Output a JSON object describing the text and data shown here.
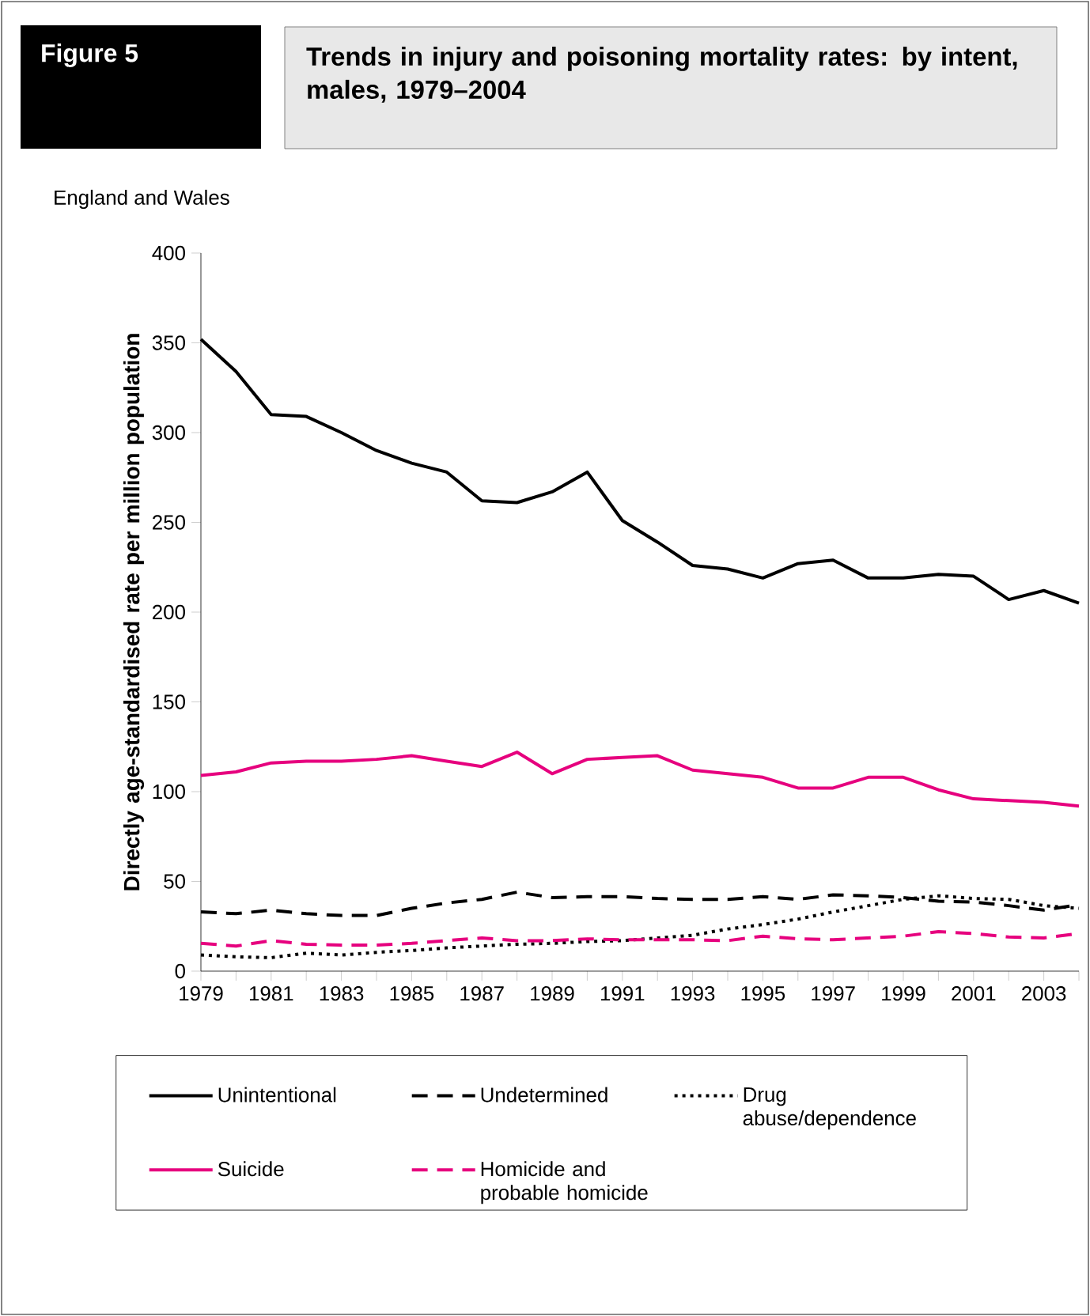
{
  "chart_data": {
    "type": "line",
    "title": "Trends in injury and poisoning mortality rates: by intent, males, 1979–2004",
    "subtitle": "England and Wales",
    "annotations": [
      "Figure 5"
    ],
    "ylabel": "Directly age-standardised rate per million population",
    "x": [
      1979,
      1980,
      1981,
      1982,
      1983,
      1984,
      1985,
      1986,
      1987,
      1988,
      1989,
      1990,
      1991,
      1992,
      1993,
      1994,
      1995,
      1996,
      1997,
      1998,
      1999,
      2000,
      2001,
      2002,
      2003,
      2004
    ],
    "xlim": [
      1979,
      2004
    ],
    "xticks": [
      1979,
      {
        "value": 1980,
        "label": null
      },
      1981,
      {
        "value": 1982,
        "label": null
      },
      1983,
      {
        "value": 1984,
        "label": null
      },
      1985,
      {
        "value": 1986,
        "label": null
      },
      1987,
      {
        "value": 1988,
        "label": null
      },
      1989,
      {
        "value": 1990,
        "label": null
      },
      1991,
      {
        "value": 1992,
        "label": null
      },
      1993,
      {
        "value": 1994,
        "label": null
      },
      1995,
      {
        "value": 1996,
        "label": null
      },
      1997,
      {
        "value": 1998,
        "label": null
      },
      1999,
      {
        "value": 2000,
        "label": null
      },
      2001,
      {
        "value": 2002,
        "label": null
      },
      2003,
      {
        "value": 2004,
        "label": null
      }
    ],
    "ylim": [
      0,
      400
    ],
    "yticks": [
      0,
      50,
      100,
      150,
      200,
      250,
      300,
      350,
      400
    ],
    "legend": "bottom",
    "series": [
      {
        "name": "Unintentional",
        "color": "#000000",
        "line_style": "solid",
        "values": [
          352,
          334,
          310,
          309,
          300,
          290,
          283,
          278,
          262,
          261,
          267,
          278,
          251,
          239,
          226,
          224,
          219,
          227,
          229,
          219,
          219,
          221,
          220,
          207,
          212,
          205
        ]
      },
      {
        "name": "Undetermined",
        "color": "#000000",
        "line_style": "dashed",
        "values": [
          33,
          32,
          34,
          32,
          31,
          31,
          35,
          38,
          40,
          44,
          41,
          41.5,
          41.5,
          40.5,
          40,
          40,
          41.5,
          40,
          42.5,
          42,
          41,
          39,
          38.5,
          36.5,
          34,
          37
        ]
      },
      {
        "name": "Drug abuse/dependence",
        "color": "#000000",
        "line_style": "dotted",
        "values": [
          9,
          8,
          7.5,
          10,
          9,
          10.5,
          11.5,
          13,
          14,
          15,
          15.5,
          16.5,
          17,
          18.5,
          20,
          23.5,
          26,
          29,
          33,
          36.5,
          40,
          42,
          40.5,
          40,
          36.5,
          35
        ]
      },
      {
        "name": "Suicide",
        "color": "#e6007e",
        "line_style": "solid",
        "values": [
          109,
          111,
          116,
          117,
          117,
          118,
          120,
          117,
          114,
          122,
          110,
          118,
          119,
          120,
          112,
          110,
          108,
          102,
          102,
          108,
          108,
          101,
          96,
          95,
          94,
          92
        ]
      },
      {
        "name": "Homicide and probable homicide",
        "color": "#e6007e",
        "line_style": "dashed",
        "values": [
          15.5,
          14,
          17,
          15,
          14.5,
          14.5,
          15.5,
          17,
          18.5,
          17,
          17,
          18,
          17.5,
          17.5,
          17.5,
          17,
          19.5,
          18,
          17.5,
          18.5,
          19.5,
          22,
          21,
          19,
          18.5,
          21
        ]
      }
    ]
  }
}
